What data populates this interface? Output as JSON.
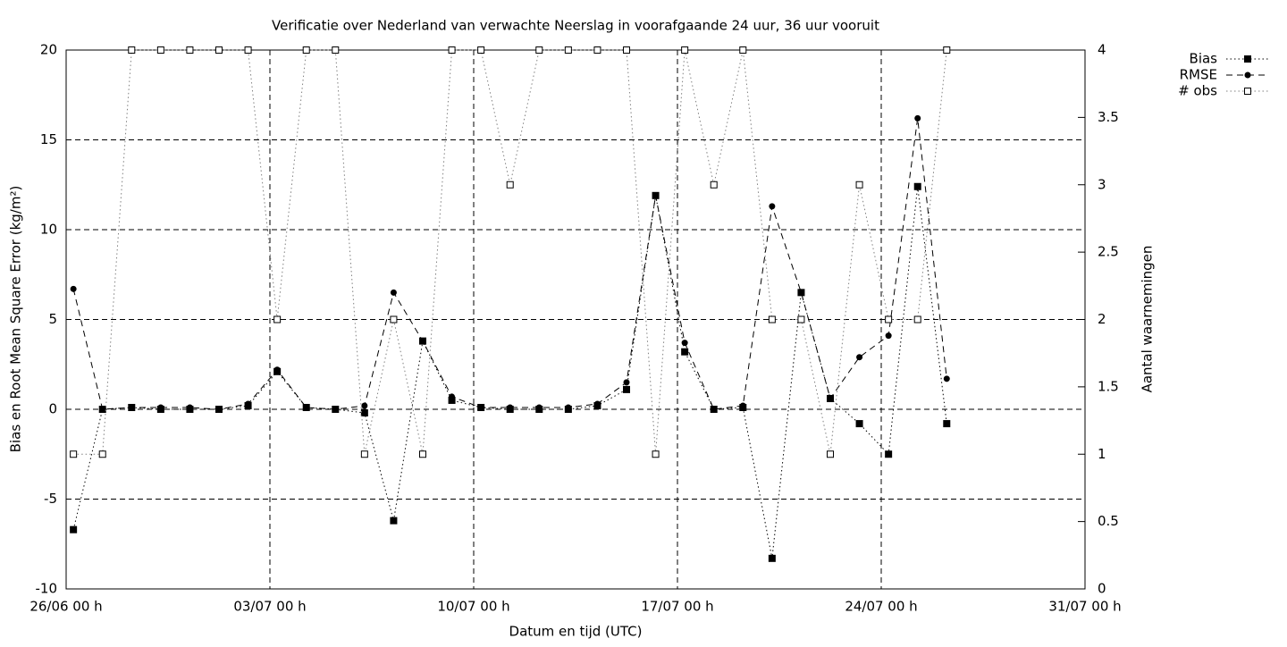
{
  "chart_data": {
    "type": "line",
    "title": "Verificatie over Nederland van verwachte Neerslag in voorafgaande 24 uur, 36 uur vooruit",
    "xlabel": "Datum en tijd (UTC)",
    "ylabel": "Bias en Root Mean Square Error (kg/m²)",
    "y2label": "Aantal waarnemingen",
    "x": [
      0.25,
      1.25,
      2.25,
      3.25,
      4.25,
      5.25,
      6.25,
      7.25,
      8.25,
      9.25,
      10.25,
      11.25,
      12.25,
      13.25,
      14.25,
      15.25,
      16.25,
      17.25,
      18.25,
      19.25,
      20.25,
      21.25,
      22.25,
      23.25,
      24.25,
      25.25,
      26.25,
      27.25,
      28.25,
      29.25,
      30.25
    ],
    "xlim": [
      0,
      35
    ],
    "xticks": [
      {
        "value": 0,
        "label": "26/06 00 h"
      },
      {
        "value": 7,
        "label": "03/07 00 h"
      },
      {
        "value": 14,
        "label": "10/07 00 h"
      },
      {
        "value": 21,
        "label": "17/07 00 h"
      },
      {
        "value": 28,
        "label": "24/07 00 h"
      },
      {
        "value": 35,
        "label": "31/07 00 h"
      }
    ],
    "ylim": [
      -10,
      20
    ],
    "yticks": [
      -10,
      -5,
      0,
      5,
      10,
      15,
      20
    ],
    "y2lim": [
      0,
      4
    ],
    "y2ticks": [
      0,
      0.5,
      1,
      1.5,
      2,
      2.5,
      3,
      3.5,
      4
    ],
    "grid": true,
    "legend": "top-right",
    "series": [
      {
        "name": "Bias",
        "color": "#000000",
        "dash": "dotted",
        "marker": "filled-square",
        "values": [
          -6.7,
          0,
          0.1,
          0,
          0,
          0,
          0.2,
          2.1,
          0.1,
          0,
          -0.2,
          -6.2,
          3.8,
          0.5,
          0.1,
          0,
          0,
          0,
          0.2,
          1.1,
          11.9,
          3.2,
          0,
          0.1,
          -8.3,
          6.5,
          0.6,
          -0.8,
          -2.5,
          12.4,
          -0.8
        ]
      },
      {
        "name": "RMSE",
        "color": "#000000",
        "dash": "dashed",
        "marker": "filled-circle",
        "values": [
          6.7,
          0,
          0.1,
          0.1,
          0.1,
          0,
          0.3,
          2.2,
          0.1,
          0,
          0.2,
          6.5,
          3.8,
          0.7,
          0.1,
          0.1,
          0.1,
          0.1,
          0.3,
          1.5,
          11.9,
          3.7,
          0,
          0.2,
          11.3,
          6.5,
          0.6,
          2.9,
          4.1,
          16.2,
          1.7
        ]
      },
      {
        "name": "# obs",
        "color": "#808080",
        "dash": "dotted",
        "marker": "open-square",
        "axis": "y2",
        "values": [
          1,
          1,
          4,
          4,
          4,
          4,
          4,
          2,
          4,
          4,
          1,
          2,
          1,
          4,
          4,
          3,
          4,
          4,
          4,
          4,
          1,
          4,
          3,
          4,
          2,
          2,
          1,
          3,
          2,
          2,
          4
        ]
      }
    ]
  }
}
